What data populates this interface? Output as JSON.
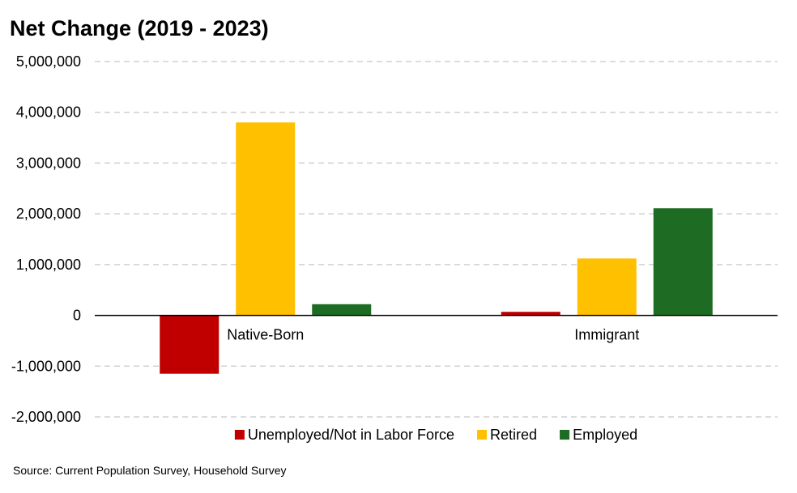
{
  "colors": {
    "unemployed": "#C00000",
    "retired": "#FFC000",
    "employed": "#1E6B23",
    "grid": "#D0D0D0",
    "axis": "#000000"
  },
  "chart_data": {
    "type": "bar",
    "title": "Net Change (2019 - 2023)",
    "categories": [
      "Native-Born",
      "Immigrant"
    ],
    "series": [
      {
        "name": "Unemployed/Not in Labor Force",
        "color_key": "unemployed",
        "values": [
          -1150000,
          70000
        ]
      },
      {
        "name": "Retired",
        "color_key": "retired",
        "values": [
          3800000,
          1120000
        ]
      },
      {
        "name": "Employed",
        "color_key": "employed",
        "values": [
          220000,
          2110000
        ]
      }
    ],
    "ylim": [
      -2000000,
      5000000
    ],
    "yticks": [
      5000000,
      4000000,
      3000000,
      2000000,
      1000000,
      0,
      -1000000,
      -2000000
    ],
    "ytick_labels": [
      "5,000,000",
      "4,000,000",
      "3,000,000",
      "2,000,000",
      "1,000,000",
      "0",
      "-1,000,000",
      "-2,000,000"
    ],
    "grid": true,
    "legend_position": "bottom",
    "xlabel": "",
    "ylabel": ""
  },
  "source": "Source: Current Population Survey, Household Survey"
}
